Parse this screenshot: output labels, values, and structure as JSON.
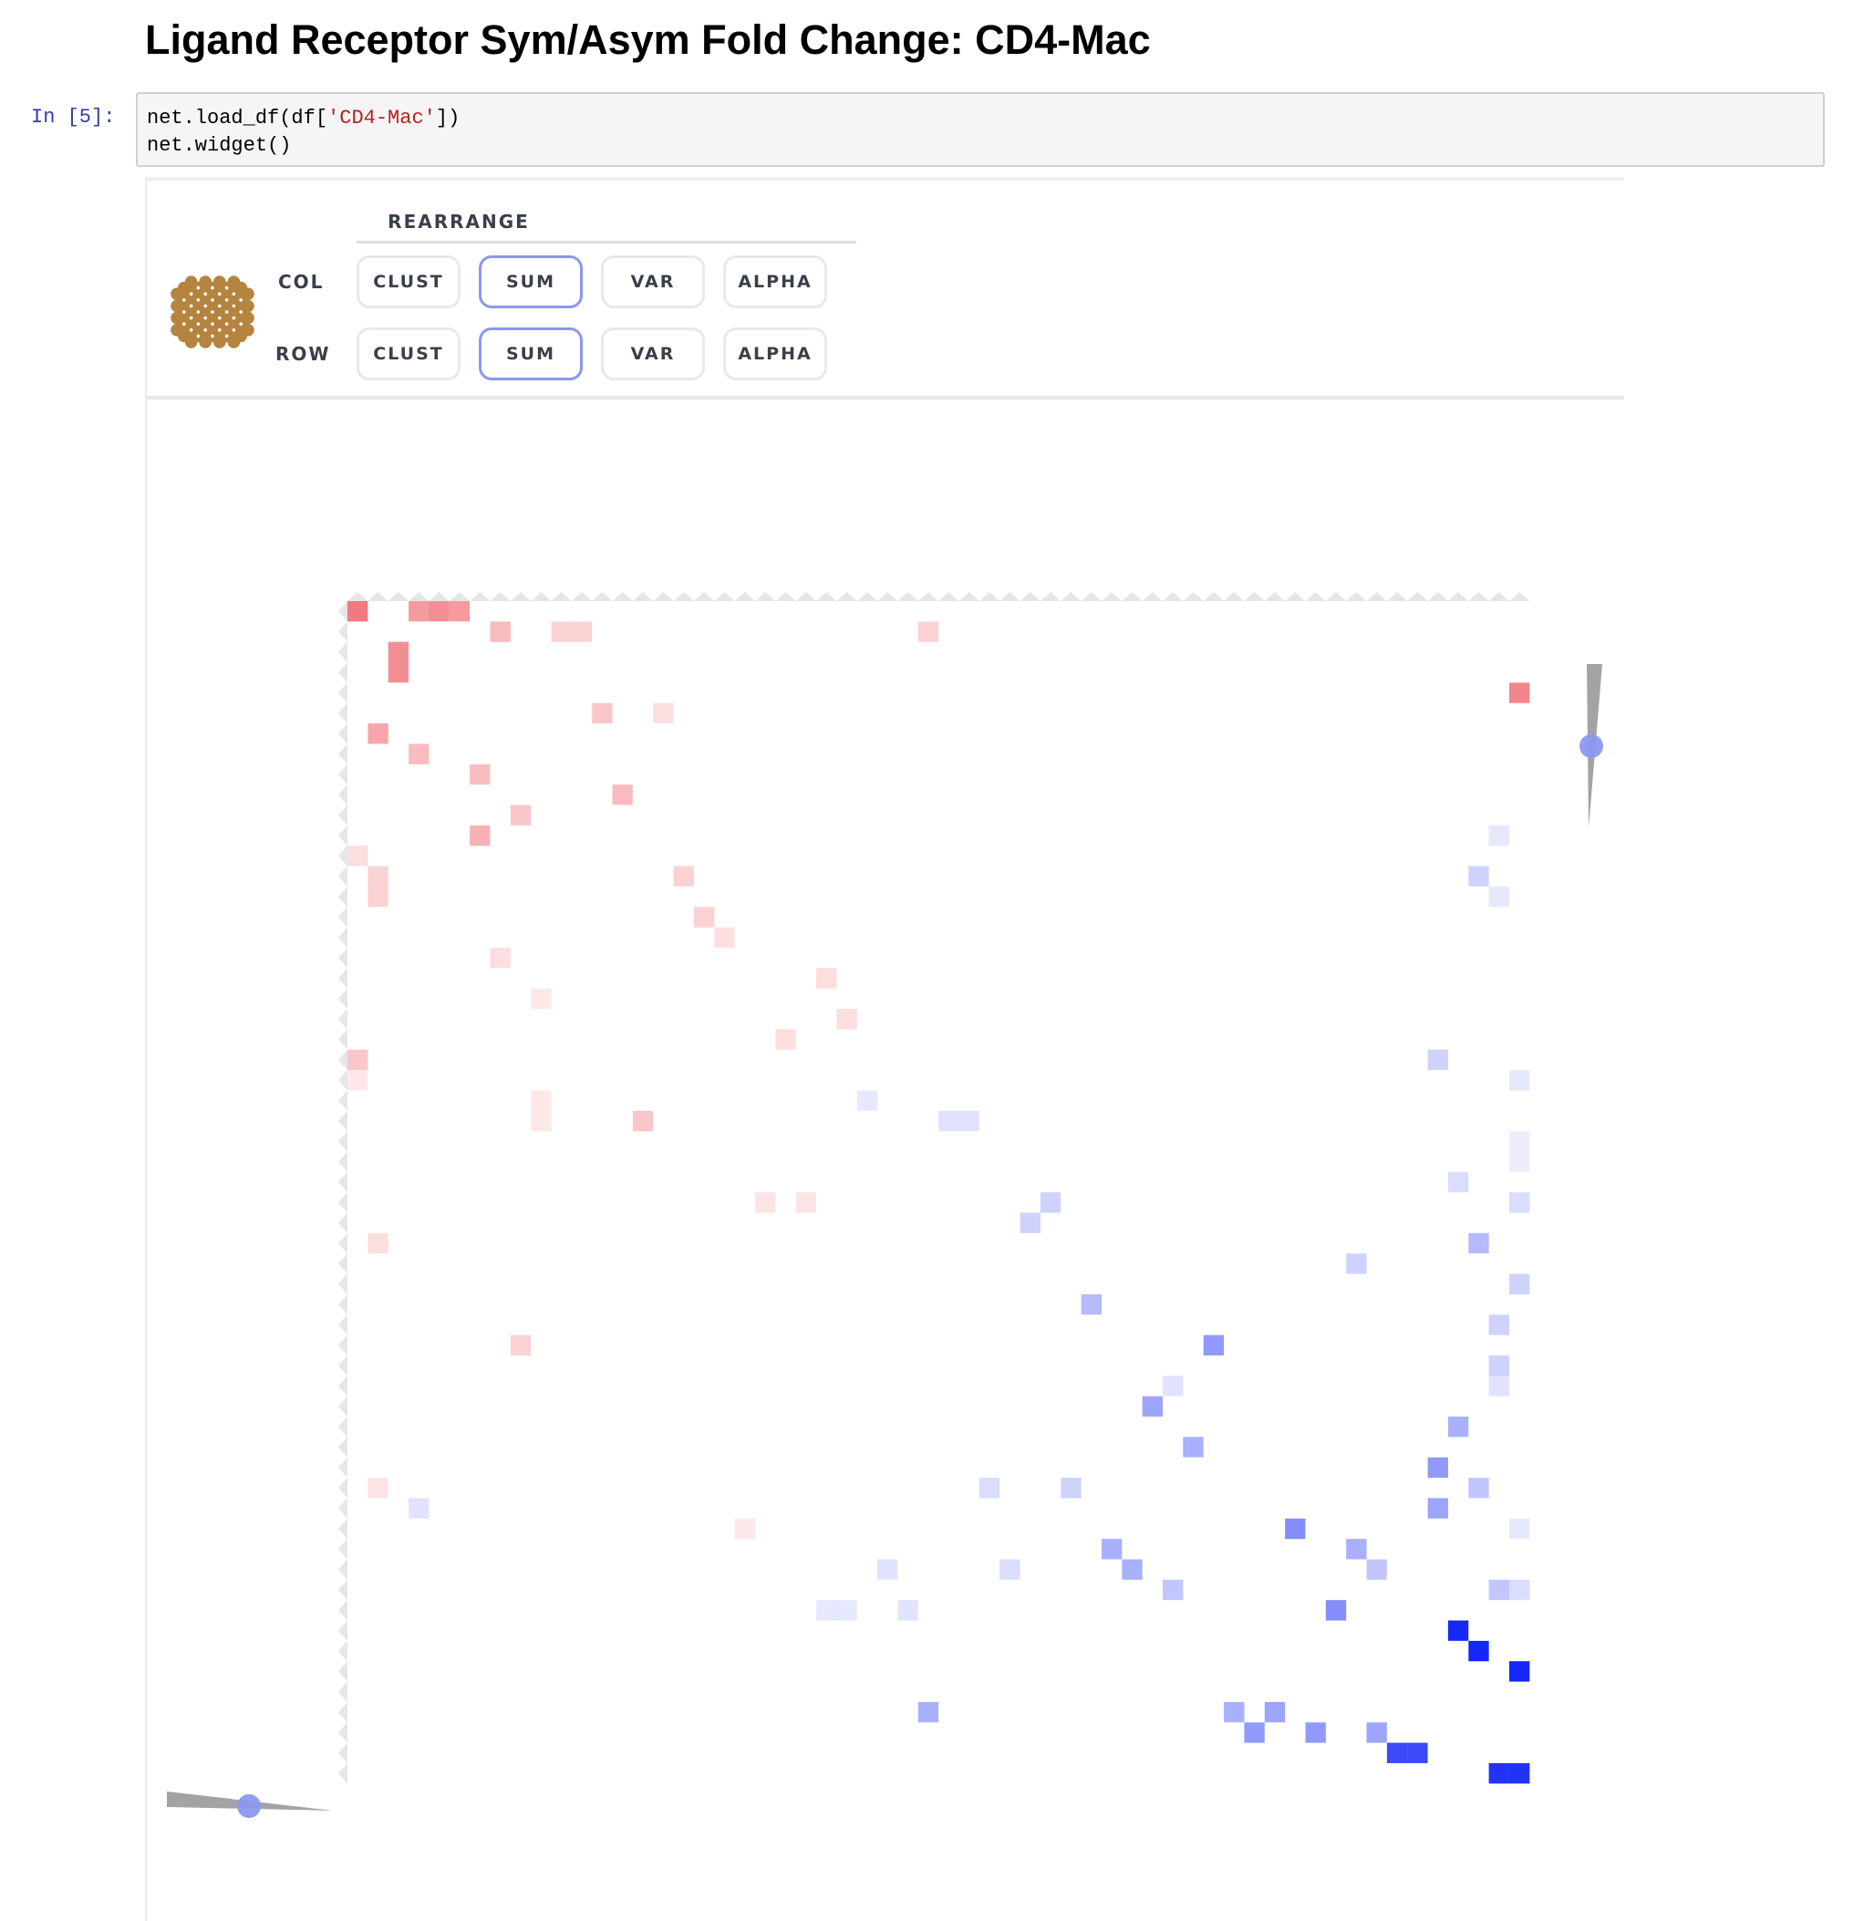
{
  "page": {
    "heading": "Ligand Receptor Sym/Asym Fold Change: CD4-Mac",
    "prompt": "In [5]:",
    "code_lines": [
      {
        "pre": "net.load_df(df[",
        "str": "'CD4-Mac'",
        "post": "])"
      },
      {
        "pre": "net.widget()",
        "str": "",
        "post": ""
      }
    ]
  },
  "widget": {
    "rearrange_label": "REARRANGE",
    "col_label": "COL",
    "row_label": "ROW",
    "col_buttons": [
      {
        "label": "CLUST",
        "active": false
      },
      {
        "label": "SUM",
        "active": true
      },
      {
        "label": "VAR",
        "active": false
      },
      {
        "label": "ALPHA",
        "active": false
      }
    ],
    "row_buttons": [
      {
        "label": "CLUST",
        "active": false
      },
      {
        "label": "SUM",
        "active": true
      },
      {
        "label": "VAR",
        "active": false
      },
      {
        "label": "ALPHA",
        "active": false
      }
    ],
    "active_color": "#8a97f0",
    "logo_color": "#b5843f",
    "slider_knob_color": "#8c98f0",
    "slider_track_color": "#a3a3a3"
  },
  "chart_data": {
    "type": "heatmap",
    "n_rows": 58,
    "n_cols": 58,
    "colors": {
      "positive": "#e8202a",
      "negative": "#0a1cf7"
    },
    "cells": [
      {
        "row": 0,
        "col": 0,
        "value": 0.6
      },
      {
        "row": 0,
        "col": 3,
        "value": 0.45
      },
      {
        "row": 0,
        "col": 4,
        "value": 0.5
      },
      {
        "row": 0,
        "col": 5,
        "value": 0.45
      },
      {
        "row": 1,
        "col": 7,
        "value": 0.3
      },
      {
        "row": 1,
        "col": 10,
        "value": 0.2
      },
      {
        "row": 1,
        "col": 11,
        "value": 0.2
      },
      {
        "row": 1,
        "col": 28,
        "value": 0.2
      },
      {
        "row": 2,
        "col": 2,
        "value": 0.5
      },
      {
        "row": 3,
        "col": 2,
        "value": 0.5
      },
      {
        "row": 4,
        "col": 57,
        "value": 0.55
      },
      {
        "row": 5,
        "col": 12,
        "value": 0.25
      },
      {
        "row": 5,
        "col": 15,
        "value": 0.15
      },
      {
        "row": 6,
        "col": 1,
        "value": 0.4
      },
      {
        "row": 7,
        "col": 3,
        "value": 0.3
      },
      {
        "row": 8,
        "col": 6,
        "value": 0.3
      },
      {
        "row": 9,
        "col": 13,
        "value": 0.3
      },
      {
        "row": 10,
        "col": 8,
        "value": 0.25
      },
      {
        "row": 11,
        "col": 6,
        "value": 0.35
      },
      {
        "row": 11,
        "col": 56,
        "value": -0.1
      },
      {
        "row": 12,
        "col": 0,
        "value": 0.15
      },
      {
        "row": 13,
        "col": 1,
        "value": 0.2
      },
      {
        "row": 13,
        "col": 16,
        "value": 0.2
      },
      {
        "row": 13,
        "col": 55,
        "value": -0.2
      },
      {
        "row": 14,
        "col": 1,
        "value": 0.2
      },
      {
        "row": 14,
        "col": 56,
        "value": -0.1
      },
      {
        "row": 15,
        "col": 17,
        "value": 0.2
      },
      {
        "row": 16,
        "col": 18,
        "value": 0.15
      },
      {
        "row": 17,
        "col": 7,
        "value": 0.15
      },
      {
        "row": 18,
        "col": 23,
        "value": 0.15
      },
      {
        "row": 19,
        "col": 9,
        "value": 0.1
      },
      {
        "row": 20,
        "col": 24,
        "value": 0.15
      },
      {
        "row": 21,
        "col": 21,
        "value": 0.15
      },
      {
        "row": 22,
        "col": 0,
        "value": 0.25
      },
      {
        "row": 22,
        "col": 53,
        "value": -0.2
      },
      {
        "row": 23,
        "col": 0,
        "value": 0.1
      },
      {
        "row": 23,
        "col": 57,
        "value": -0.1
      },
      {
        "row": 24,
        "col": 25,
        "value": -0.1
      },
      {
        "row": 24,
        "col": 9,
        "value": 0.1
      },
      {
        "row": 25,
        "col": 9,
        "value": 0.1
      },
      {
        "row": 25,
        "col": 14,
        "value": 0.25
      },
      {
        "row": 25,
        "col": 29,
        "value": -0.12
      },
      {
        "row": 25,
        "col": 30,
        "value": -0.12
      },
      {
        "row": 26,
        "col": 57,
        "value": -0.08
      },
      {
        "row": 27,
        "col": 57,
        "value": -0.08
      },
      {
        "row": 28,
        "col": 54,
        "value": -0.15
      },
      {
        "row": 29,
        "col": 20,
        "value": 0.12
      },
      {
        "row": 29,
        "col": 22,
        "value": 0.12
      },
      {
        "row": 29,
        "col": 34,
        "value": -0.2
      },
      {
        "row": 29,
        "col": 57,
        "value": -0.15
      },
      {
        "row": 30,
        "col": 33,
        "value": -0.2
      },
      {
        "row": 31,
        "col": 1,
        "value": 0.15
      },
      {
        "row": 31,
        "col": 55,
        "value": -0.3
      },
      {
        "row": 32,
        "col": 49,
        "value": -0.2
      },
      {
        "row": 33,
        "col": 57,
        "value": -0.2
      },
      {
        "row": 34,
        "col": 36,
        "value": -0.3
      },
      {
        "row": 35,
        "col": 56,
        "value": -0.2
      },
      {
        "row": 36,
        "col": 8,
        "value": 0.2
      },
      {
        "row": 36,
        "col": 42,
        "value": -0.45
      },
      {
        "row": 37,
        "col": 56,
        "value": -0.2
      },
      {
        "row": 38,
        "col": 40,
        "value": -0.12
      },
      {
        "row": 38,
        "col": 56,
        "value": -0.12
      },
      {
        "row": 39,
        "col": 39,
        "value": -0.4
      },
      {
        "row": 40,
        "col": 54,
        "value": -0.35
      },
      {
        "row": 41,
        "col": 41,
        "value": -0.35
      },
      {
        "row": 42,
        "col": 53,
        "value": -0.45
      },
      {
        "row": 43,
        "col": 1,
        "value": 0.12
      },
      {
        "row": 43,
        "col": 31,
        "value": -0.15
      },
      {
        "row": 43,
        "col": 35,
        "value": -0.2
      },
      {
        "row": 43,
        "col": 55,
        "value": -0.25
      },
      {
        "row": 44,
        "col": 3,
        "value": -0.12
      },
      {
        "row": 44,
        "col": 53,
        "value": -0.4
      },
      {
        "row": 45,
        "col": 19,
        "value": 0.1
      },
      {
        "row": 45,
        "col": 46,
        "value": -0.5
      },
      {
        "row": 45,
        "col": 57,
        "value": -0.1
      },
      {
        "row": 46,
        "col": 37,
        "value": -0.35
      },
      {
        "row": 46,
        "col": 49,
        "value": -0.35
      },
      {
        "row": 47,
        "col": 26,
        "value": -0.12
      },
      {
        "row": 47,
        "col": 32,
        "value": -0.15
      },
      {
        "row": 47,
        "col": 38,
        "value": -0.35
      },
      {
        "row": 47,
        "col": 50,
        "value": -0.25
      },
      {
        "row": 48,
        "col": 40,
        "value": -0.25
      },
      {
        "row": 48,
        "col": 56,
        "value": -0.25
      },
      {
        "row": 48,
        "col": 57,
        "value": -0.15
      },
      {
        "row": 49,
        "col": 23,
        "value": -0.1
      },
      {
        "row": 49,
        "col": 24,
        "value": -0.1
      },
      {
        "row": 49,
        "col": 27,
        "value": -0.12
      },
      {
        "row": 49,
        "col": 48,
        "value": -0.5
      },
      {
        "row": 50,
        "col": 54,
        "value": -0.95
      },
      {
        "row": 51,
        "col": 55,
        "value": -0.95
      },
      {
        "row": 52,
        "col": 57,
        "value": -0.95
      },
      {
        "row": 54,
        "col": 28,
        "value": -0.35
      },
      {
        "row": 54,
        "col": 43,
        "value": -0.35
      },
      {
        "row": 54,
        "col": 45,
        "value": -0.4
      },
      {
        "row": 55,
        "col": 44,
        "value": -0.45
      },
      {
        "row": 55,
        "col": 47,
        "value": -0.45
      },
      {
        "row": 55,
        "col": 50,
        "value": -0.4
      },
      {
        "row": 56,
        "col": 51,
        "value": -0.8
      },
      {
        "row": 56,
        "col": 52,
        "value": -0.8
      },
      {
        "row": 57,
        "col": 56,
        "value": -0.9
      },
      {
        "row": 57,
        "col": 57,
        "value": -0.9
      }
    ]
  }
}
